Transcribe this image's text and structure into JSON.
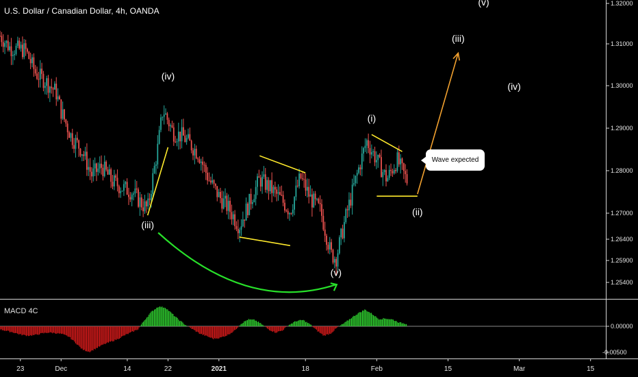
{
  "header": {
    "title": "U.S. Dollar / Canadian Dollar, 4h, OANDA"
  },
  "macd": {
    "label": "MACD 4C"
  },
  "callout": {
    "text": "Wave expected"
  },
  "chart_data": {
    "type": "candlestick",
    "title": "U.S. Dollar / Canadian Dollar, 4h, OANDA",
    "price_axis": {
      "ticks": [
        1.32,
        1.31,
        1.3,
        1.29,
        1.28,
        1.27,
        1.264,
        1.259,
        1.254
      ],
      "tick_labels": [
        "1.32000",
        "1.31000",
        "1.30000",
        "1.29000",
        "1.28000",
        "1.27000",
        "1.26400",
        "1.25900",
        "1.25400"
      ],
      "range": [
        1.2515,
        1.3205
      ]
    },
    "macd_axis": {
      "ticks": [
        0.0,
        -0.005
      ],
      "tick_labels": [
        "0.00000",
        "-0.00500"
      ]
    },
    "time_axis": {
      "tick_labels": [
        "23",
        "Dec",
        "14",
        "22",
        "2021",
        "18",
        "Feb",
        "15",
        "Mar",
        "15"
      ],
      "bold": [
        "2021"
      ]
    },
    "price_path": [
      [
        "2020-11-19",
        1.312
      ],
      [
        "2020-11-21",
        1.309
      ],
      [
        "2020-11-24",
        1.3085
      ],
      [
        "2020-11-26",
        1.303
      ],
      [
        "2020-11-28",
        1.301
      ],
      [
        "2020-11-30",
        1.2985
      ],
      [
        "2020-12-01",
        1.294
      ],
      [
        "2020-12-03",
        1.288
      ],
      [
        "2020-12-05",
        1.285
      ],
      [
        "2020-12-07",
        1.279
      ],
      [
        "2020-12-09",
        1.281
      ],
      [
        "2020-12-11",
        1.2775
      ],
      [
        "2020-12-13",
        1.276
      ],
      [
        "2020-12-15",
        1.275
      ],
      [
        "2020-12-17",
        1.272
      ],
      [
        "2020-12-18",
        1.271
      ],
      [
        "2020-12-20",
        1.2855
      ],
      [
        "2020-12-21",
        1.2945
      ],
      [
        "2020-12-23",
        1.289
      ],
      [
        "2020-12-25",
        1.288
      ],
      [
        "2020-12-28",
        1.284
      ],
      [
        "2020-12-30",
        1.278
      ],
      [
        "2021-01-01",
        1.274
      ],
      [
        "2021-01-03",
        1.271
      ],
      [
        "2021-01-05",
        1.267
      ],
      [
        "2021-01-07",
        1.2725
      ],
      [
        "2021-01-09",
        1.278
      ],
      [
        "2021-01-11",
        1.276
      ],
      [
        "2021-01-13",
        1.2735
      ],
      [
        "2021-01-15",
        1.2705
      ],
      [
        "2021-01-17",
        1.2785
      ],
      [
        "2021-01-19",
        1.2735
      ],
      [
        "2021-01-21",
        1.2705
      ],
      [
        "2021-01-23",
        1.2605
      ],
      [
        "2021-01-24",
        1.2595
      ],
      [
        "2021-01-26",
        1.2695
      ],
      [
        "2021-01-28",
        1.2785
      ],
      [
        "2021-01-30",
        1.287
      ],
      [
        "2021-02-01",
        1.2825
      ],
      [
        "2021-02-03",
        1.278
      ],
      [
        "2021-02-05",
        1.2825
      ],
      [
        "2021-02-07",
        1.2775
      ]
    ],
    "macd_histogram": [
      -0.0006,
      -0.0009,
      -0.0012,
      -0.0016,
      -0.0018,
      -0.0017,
      -0.0014,
      -0.0012,
      -0.0013,
      -0.0015,
      -0.002,
      -0.0032,
      -0.0045,
      -0.0049,
      -0.0042,
      -0.0035,
      -0.003,
      -0.0025,
      -0.0018,
      -0.0012,
      -0.0006,
      0.0012,
      0.0028,
      0.0038,
      0.0036,
      0.0024,
      0.0012,
      0.0002,
      -0.0006,
      -0.0014,
      -0.0019,
      -0.0024,
      -0.0022,
      -0.0017,
      -0.0009,
      0.0005,
      0.0013,
      0.0012,
      0.0004,
      -0.0006,
      -0.0012,
      -0.0008,
      0.0003,
      0.001,
      0.0012,
      0.0004,
      -0.0008,
      -0.0018,
      -0.0014,
      -0.0002,
      0.0006,
      0.0016,
      0.0025,
      0.0032,
      0.0024,
      0.0014,
      0.0015,
      0.0013,
      0.0007,
      0.0005
    ],
    "annotations": {
      "waves": [
        {
          "label": "(iv)",
          "date": "2020-12-22",
          "price": 1.3015
        },
        {
          "label": "(iii)",
          "date": "2020-12-18",
          "price": 1.2665
        },
        {
          "label": "(v)",
          "date": "2021-01-24",
          "price": 1.2555
        },
        {
          "label": "(i)",
          "date": "2021-01-31",
          "price": 1.2915
        },
        {
          "label": "(ii)",
          "date": "2021-02-09",
          "price": 1.2695
        },
        {
          "label": "(iii)",
          "date": "2021-02-17",
          "price": 1.3105
        },
        {
          "label": "(iv)",
          "date": "2021-02-28",
          "price": 1.299
        },
        {
          "label": "(v)",
          "date": "2021-02-22",
          "price": 1.3195
        }
      ],
      "yellow_lines": [
        [
          [
            "2020-12-18",
            1.2695
          ],
          [
            "2020-12-22",
            1.2855
          ]
        ],
        [
          [
            "2021-01-09",
            1.2835
          ],
          [
            "2021-01-18",
            1.2795
          ]
        ],
        [
          [
            "2021-01-05",
            1.2645
          ],
          [
            "2021-01-15",
            1.2625
          ]
        ],
        [
          [
            "2021-01-31",
            1.2885
          ],
          [
            "2021-02-06",
            1.2845
          ]
        ],
        [
          [
            "2021-02-01",
            1.274
          ],
          [
            "2021-02-09",
            1.274
          ]
        ]
      ],
      "green_arrow": {
        "from": [
          "2020-12-19",
          1.2655
        ],
        "to": [
          "2021-01-24",
          1.2535
        ]
      },
      "orange_arrow": {
        "from": [
          "2021-02-09",
          1.2745
        ],
        "to": [
          "2021-02-17",
          1.3078
        ]
      },
      "callout": "Wave expected"
    },
    "colors": {
      "up": "#26a69a",
      "down": "#ef5350",
      "macd_pos": "#2ec92e",
      "macd_neg": "#d11a1a",
      "yellow": "#ffea2c",
      "green_arrow": "#28e02a",
      "orange": "#f2a12f",
      "background": "#000000"
    }
  }
}
